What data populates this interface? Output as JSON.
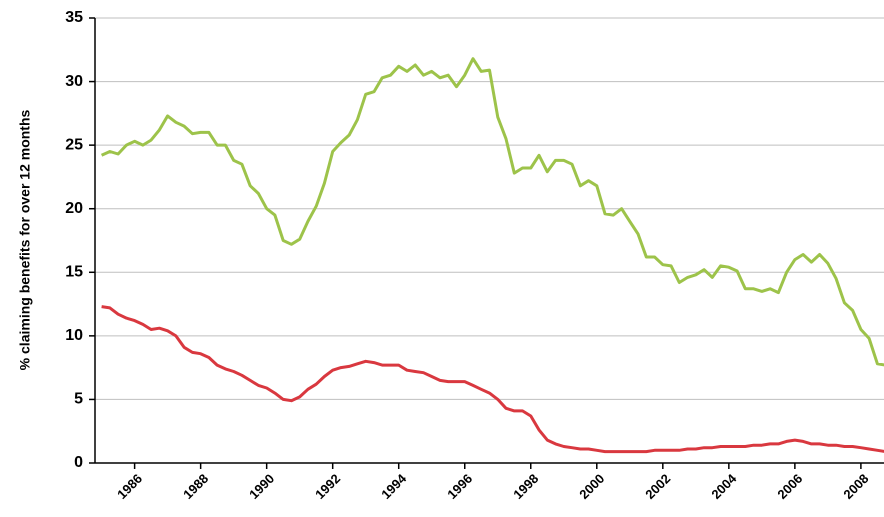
{
  "chart_data": {
    "type": "line",
    "y_label": "% claiming benefits for over 12 months",
    "x": [
      1985,
      1985.25,
      1985.5,
      1985.75,
      1986,
      1986.25,
      1986.5,
      1986.75,
      1987,
      1987.25,
      1987.5,
      1987.75,
      1988,
      1988.25,
      1988.5,
      1988.75,
      1989,
      1989.25,
      1989.5,
      1989.75,
      1990,
      1990.25,
      1990.5,
      1990.75,
      1991,
      1991.25,
      1991.5,
      1991.75,
      1992,
      1992.25,
      1992.5,
      1992.75,
      1993,
      1993.25,
      1993.5,
      1993.75,
      1994,
      1994.25,
      1994.5,
      1994.75,
      1995,
      1995.25,
      1995.5,
      1995.75,
      1996,
      1996.25,
      1996.5,
      1996.75,
      1997,
      1997.25,
      1997.5,
      1997.75,
      1998,
      1998.25,
      1998.5,
      1998.75,
      1999,
      1999.25,
      1999.5,
      1999.75,
      2000,
      2000.25,
      2000.5,
      2000.75,
      2001,
      2001.25,
      2001.5,
      2001.75,
      2002,
      2002.25,
      2002.5,
      2002.75,
      2003,
      2003.25,
      2003.5,
      2003.75,
      2004,
      2004.25,
      2004.5,
      2004.75,
      2005,
      2005.25,
      2005.5,
      2005.75,
      2006,
      2006.25,
      2006.5,
      2006.75,
      2007,
      2007.25,
      2007.5,
      2007.75,
      2008,
      2008.25,
      2008.5,
      2008.75
    ],
    "series": [
      {
        "color": "#9dc34a",
        "values": [
          24.2,
          24.5,
          24.3,
          25.0,
          25.3,
          25.0,
          25.4,
          26.2,
          27.3,
          26.8,
          26.5,
          25.9,
          26.0,
          26.0,
          25.0,
          25.0,
          23.8,
          23.5,
          21.8,
          21.2,
          20.0,
          19.5,
          17.5,
          17.2,
          17.6,
          19.0,
          20.2,
          22.0,
          24.5,
          25.2,
          25.8,
          27.0,
          29.0,
          29.2,
          30.3,
          30.5,
          31.2,
          30.8,
          31.3,
          30.5,
          30.8,
          30.3,
          30.5,
          29.6,
          30.5,
          31.8,
          30.8,
          30.9,
          27.2,
          25.5,
          22.8,
          23.2,
          23.2,
          24.2,
          22.9,
          23.8,
          23.8,
          23.5,
          21.8,
          22.2,
          21.8,
          19.6,
          19.5,
          20.0,
          19.0,
          18.0,
          16.2,
          16.2,
          15.6,
          15.5,
          14.2,
          14.6,
          14.8,
          15.2,
          14.6,
          15.5,
          15.4,
          15.1,
          13.7,
          13.7,
          13.5,
          13.7,
          13.4,
          15.0,
          16.0,
          16.4,
          15.8,
          16.4,
          15.7,
          14.5,
          12.6,
          12.0,
          10.5,
          9.8,
          7.8,
          7.7
        ]
      },
      {
        "color": "#d9383f",
        "values": [
          12.3,
          12.2,
          11.7,
          11.4,
          11.2,
          10.9,
          10.5,
          10.6,
          10.4,
          10.0,
          9.1,
          8.7,
          8.6,
          8.3,
          7.7,
          7.4,
          7.2,
          6.9,
          6.5,
          6.1,
          5.9,
          5.5,
          5.0,
          4.9,
          5.2,
          5.8,
          6.2,
          6.8,
          7.3,
          7.5,
          7.6,
          7.8,
          8.0,
          7.9,
          7.7,
          7.7,
          7.7,
          7.3,
          7.2,
          7.1,
          6.8,
          6.5,
          6.4,
          6.4,
          6.4,
          6.1,
          5.8,
          5.5,
          5.0,
          4.3,
          4.1,
          4.1,
          3.7,
          2.6,
          1.8,
          1.5,
          1.3,
          1.2,
          1.1,
          1.1,
          1.0,
          0.9,
          0.9,
          0.9,
          0.9,
          0.9,
          0.9,
          1.0,
          1.0,
          1.0,
          1.0,
          1.1,
          1.1,
          1.2,
          1.2,
          1.3,
          1.3,
          1.3,
          1.3,
          1.4,
          1.4,
          1.5,
          1.5,
          1.7,
          1.8,
          1.7,
          1.5,
          1.5,
          1.4,
          1.4,
          1.3,
          1.3,
          1.2,
          1.1,
          1.0,
          0.9
        ]
      }
    ],
    "xlim": [
      1984.8,
      2008.7
    ],
    "xticks": [
      1986,
      1988,
      1990,
      1992,
      1994,
      1996,
      1998,
      2000,
      2002,
      2004,
      2006,
      2008
    ],
    "ylim": [
      0,
      35
    ],
    "yticks": [
      0,
      5,
      10,
      15,
      20,
      25,
      30,
      35
    ],
    "grid": true
  }
}
